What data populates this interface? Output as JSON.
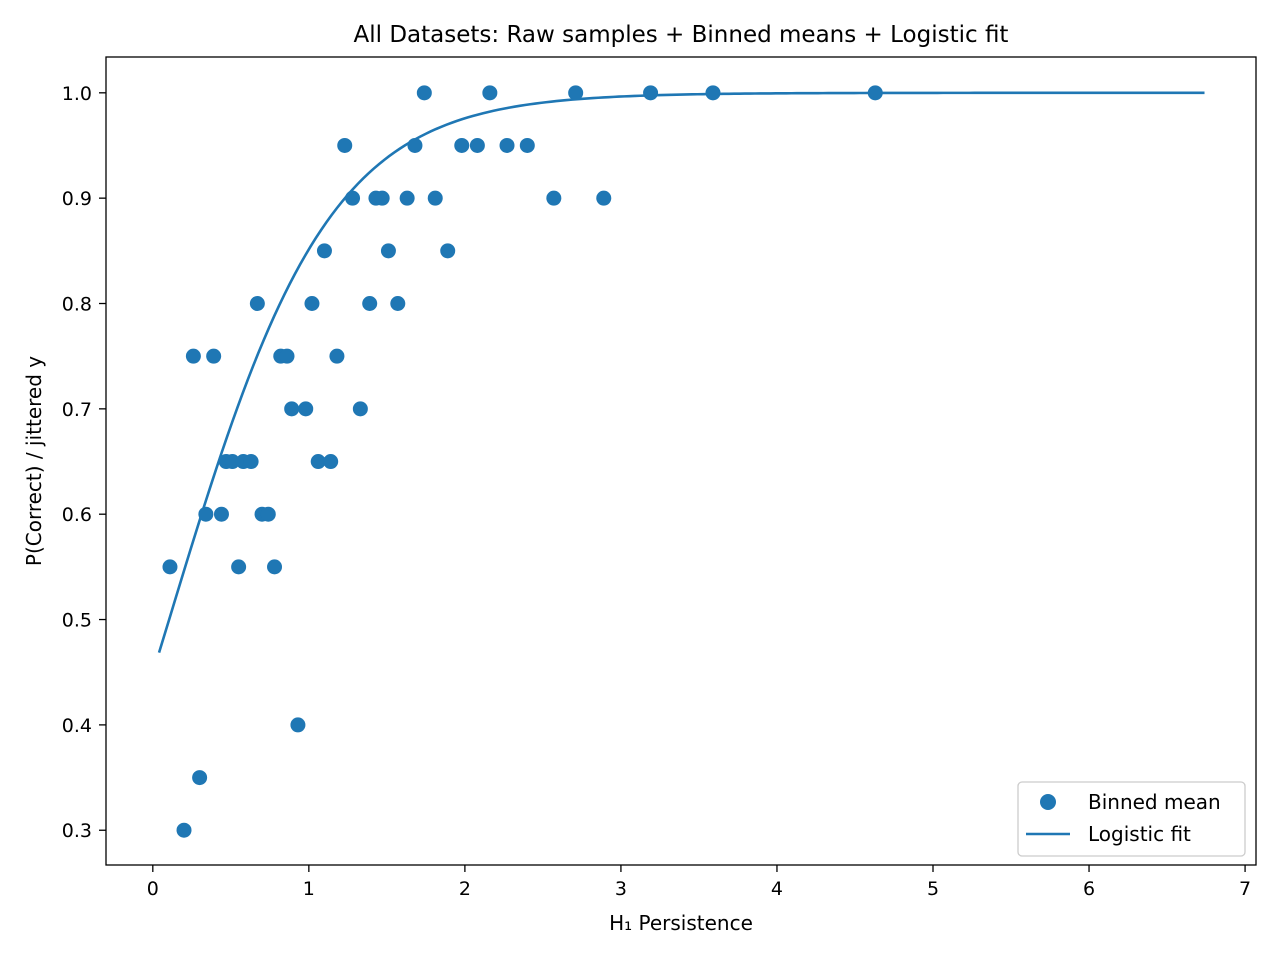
{
  "chart_data": {
    "type": "scatter",
    "title": "All Datasets: Raw samples + Binned means + Logistic fit",
    "xlabel": "H₁ Persistence",
    "ylabel": "P(Correct) / jittered y",
    "xlim": [
      -0.3,
      7.07
    ],
    "ylim": [
      0.267,
      1.034
    ],
    "xticks": [
      0,
      1,
      2,
      3,
      4,
      5,
      6,
      7
    ],
    "xtick_labels": [
      "0",
      "1",
      "2",
      "3",
      "4",
      "5",
      "6",
      "7"
    ],
    "yticks": [
      0.3,
      0.4,
      0.5,
      0.6,
      0.7,
      0.8,
      0.9,
      1.0
    ],
    "ytick_labels": [
      "0.3",
      "0.4",
      "0.5",
      "0.6",
      "0.7",
      "0.8",
      "0.9",
      "1.0"
    ],
    "grid": false,
    "legend_position": "bottom-right",
    "color": "#1f77b4",
    "series": [
      {
        "name": "Binned mean",
        "kind": "scatter",
        "points": [
          [
            0.11,
            0.55
          ],
          [
            0.2,
            0.3
          ],
          [
            0.26,
            0.75
          ],
          [
            0.3,
            0.35
          ],
          [
            0.34,
            0.6
          ],
          [
            0.39,
            0.75
          ],
          [
            0.44,
            0.6
          ],
          [
            0.47,
            0.65
          ],
          [
            0.51,
            0.65
          ],
          [
            0.55,
            0.55
          ],
          [
            0.58,
            0.65
          ],
          [
            0.63,
            0.65
          ],
          [
            0.67,
            0.8
          ],
          [
            0.7,
            0.6
          ],
          [
            0.74,
            0.6
          ],
          [
            0.78,
            0.55
          ],
          [
            0.82,
            0.75
          ],
          [
            0.86,
            0.75
          ],
          [
            0.89,
            0.7
          ],
          [
            0.93,
            0.4
          ],
          [
            0.98,
            0.7
          ],
          [
            1.02,
            0.8
          ],
          [
            1.06,
            0.65
          ],
          [
            1.1,
            0.85
          ],
          [
            1.14,
            0.65
          ],
          [
            1.18,
            0.75
          ],
          [
            1.23,
            0.95
          ],
          [
            1.28,
            0.9
          ],
          [
            1.33,
            0.7
          ],
          [
            1.39,
            0.8
          ],
          [
            1.43,
            0.9
          ],
          [
            1.47,
            0.9
          ],
          [
            1.51,
            0.85
          ],
          [
            1.57,
            0.8
          ],
          [
            1.63,
            0.9
          ],
          [
            1.68,
            0.95
          ],
          [
            1.74,
            1.0
          ],
          [
            1.81,
            0.9
          ],
          [
            1.89,
            0.85
          ],
          [
            1.98,
            0.95
          ],
          [
            2.08,
            0.95
          ],
          [
            2.16,
            1.0
          ],
          [
            2.27,
            0.95
          ],
          [
            2.4,
            0.95
          ],
          [
            2.57,
            0.9
          ],
          [
            2.71,
            1.0
          ],
          [
            2.89,
            0.9
          ],
          [
            3.19,
            1.0
          ],
          [
            3.59,
            1.0
          ],
          [
            4.63,
            1.0
          ]
        ]
      },
      {
        "name": "Logistic fit",
        "kind": "line",
        "x_range": [
          0.04,
          6.74
        ],
        "intercept": -0.204,
        "slope": 1.95
      }
    ]
  }
}
